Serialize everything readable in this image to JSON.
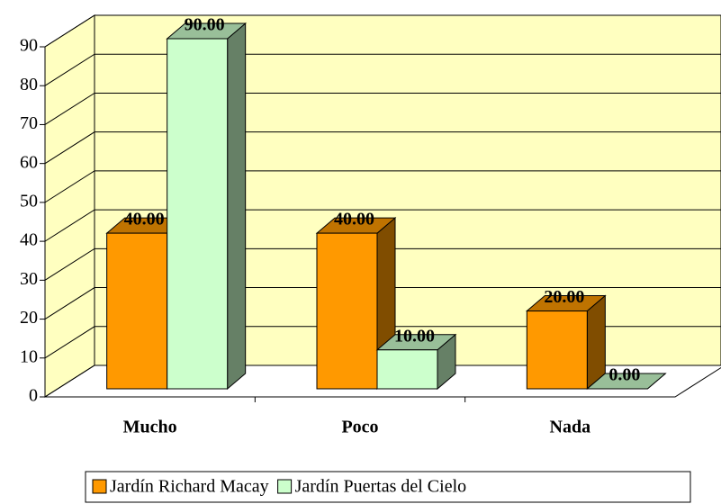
{
  "chart_data": {
    "type": "bar",
    "categories": [
      "Mucho",
      "Poco",
      "Nada"
    ],
    "series": [
      {
        "name": "Jardín Richard Macay",
        "color": "#ff9900",
        "values": [
          40,
          40,
          20
        ],
        "value_labels": [
          "40.00",
          "40.00",
          "20.00"
        ]
      },
      {
        "name": "Jardín Puertas del Cielo",
        "color": "#ccffcc",
        "values": [
          90,
          10,
          0
        ],
        "value_labels": [
          "90.00",
          "10.00",
          "0.00"
        ]
      }
    ],
    "ylim": [
      0,
      90
    ],
    "yticks": [
      0,
      10,
      20,
      30,
      40,
      50,
      60,
      70,
      80,
      90
    ],
    "grid": true,
    "legend": "bottom"
  }
}
